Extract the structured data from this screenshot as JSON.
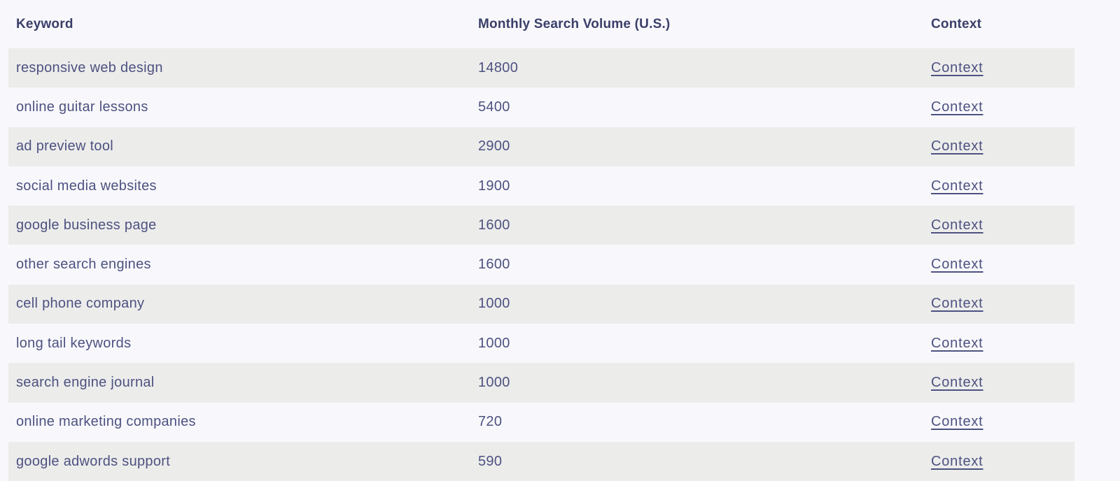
{
  "table": {
    "columns": [
      {
        "key": "keyword",
        "label": "Keyword"
      },
      {
        "key": "volume",
        "label": "Monthly Search Volume (U.S.)"
      },
      {
        "key": "context",
        "label": "Context"
      }
    ],
    "rows": [
      {
        "keyword": "responsive web design",
        "volume": "14800",
        "context_label": "Context"
      },
      {
        "keyword": "online guitar lessons",
        "volume": "5400",
        "context_label": "Context"
      },
      {
        "keyword": "ad preview tool",
        "volume": "2900",
        "context_label": "Context"
      },
      {
        "keyword": "social media websites",
        "volume": "1900",
        "context_label": "Context"
      },
      {
        "keyword": "google business page",
        "volume": "1600",
        "context_label": "Context"
      },
      {
        "keyword": "other search engines",
        "volume": "1600",
        "context_label": "Context"
      },
      {
        "keyword": "cell phone company",
        "volume": "1000",
        "context_label": "Context"
      },
      {
        "keyword": "long tail keywords",
        "volume": "1000",
        "context_label": "Context"
      },
      {
        "keyword": "search engine journal",
        "volume": "1000",
        "context_label": "Context"
      },
      {
        "keyword": "online marketing companies",
        "volume": "720",
        "context_label": "Context"
      },
      {
        "keyword": "google adwords support",
        "volume": "590",
        "context_label": "Context"
      }
    ]
  },
  "colors": {
    "page_bg": "#F8F8FC",
    "row_alt_bg": "#ECECEB",
    "header_text": "#3A3F69",
    "cell_text": "#4D5280",
    "link_color": "#4D5280"
  }
}
